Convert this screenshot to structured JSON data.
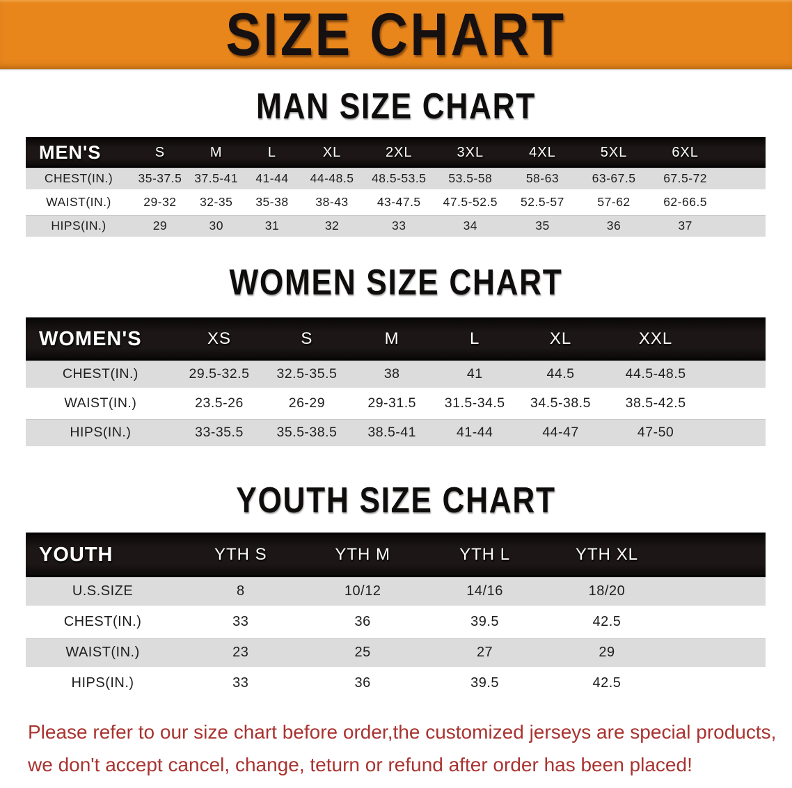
{
  "banner": {
    "title": "SIZE CHART"
  },
  "colors": {
    "banner_bg": "#e8861c",
    "header_bar_bg": "#1c1616",
    "header_bar_text": "#ffffff",
    "gray_row_bg": "#dcdcdc",
    "footer_text": "#a93330",
    "title_text": "#0f0c0c"
  },
  "sections": [
    {
      "title": "MAN SIZE CHART",
      "header": {
        "label": "MEN'S",
        "sizes": [
          "S",
          "M",
          "L",
          "XL",
          "2XL",
          "3XL",
          "4XL",
          "5XL",
          "6XL"
        ]
      },
      "rows": [
        {
          "label": "CHEST(IN.)",
          "values": [
            "35-37.5",
            "37.5-41",
            "41-44",
            "44-48.5",
            "48.5-53.5",
            "53.5-58",
            "58-63",
            "63-67.5",
            "67.5-72"
          ]
        },
        {
          "label": "WAIST(IN.)",
          "values": [
            "29-32",
            "32-35",
            "35-38",
            "38-43",
            "43-47.5",
            "47.5-52.5",
            "52.5-57",
            "57-62",
            "62-66.5"
          ]
        },
        {
          "label": "HIPS(IN.)",
          "values": [
            "29",
            "30",
            "31",
            "32",
            "33",
            "34",
            "35",
            "36",
            "37"
          ]
        }
      ]
    },
    {
      "title": "WOMEN SIZE CHART",
      "header": {
        "label": "WOMEN'S",
        "sizes": [
          "XS",
          "S",
          "M",
          "L",
          "XL",
          "XXL"
        ]
      },
      "rows": [
        {
          "label": "CHEST(IN.)",
          "values": [
            "29.5-32.5",
            "32.5-35.5",
            "38",
            "41",
            "44.5",
            "44.5-48.5"
          ]
        },
        {
          "label": "WAIST(IN.)",
          "values": [
            "23.5-26",
            "26-29",
            "29-31.5",
            "31.5-34.5",
            "34.5-38.5",
            "38.5-42.5"
          ]
        },
        {
          "label": "HIPS(IN.)",
          "values": [
            "33-35.5",
            "35.5-38.5",
            "38.5-41",
            "41-44",
            "44-47",
            "47-50"
          ]
        }
      ]
    },
    {
      "title": "YOUTH SIZE CHART",
      "header": {
        "label": "YOUTH",
        "sizes": [
          "YTH S",
          "YTH M",
          "YTH L",
          "YTH XL"
        ]
      },
      "rows": [
        {
          "label": "U.S.SIZE",
          "values": [
            "8",
            "10/12",
            "14/16",
            "18/20"
          ]
        },
        {
          "label": "CHEST(IN.)",
          "values": [
            "33",
            "36",
            "39.5",
            "42.5"
          ]
        },
        {
          "label": "WAIST(IN.)",
          "values": [
            "23",
            "25",
            "27",
            "29"
          ]
        },
        {
          "label": "HIPS(IN.)",
          "values": [
            "33",
            "36",
            "39.5",
            "42.5"
          ]
        }
      ]
    }
  ],
  "footer": {
    "lines": [
      "Please refer to our size chart before order,the customized jerseys are special products,",
      "we don't accept cancel, change, teturn or refund after order has been placed!"
    ]
  }
}
